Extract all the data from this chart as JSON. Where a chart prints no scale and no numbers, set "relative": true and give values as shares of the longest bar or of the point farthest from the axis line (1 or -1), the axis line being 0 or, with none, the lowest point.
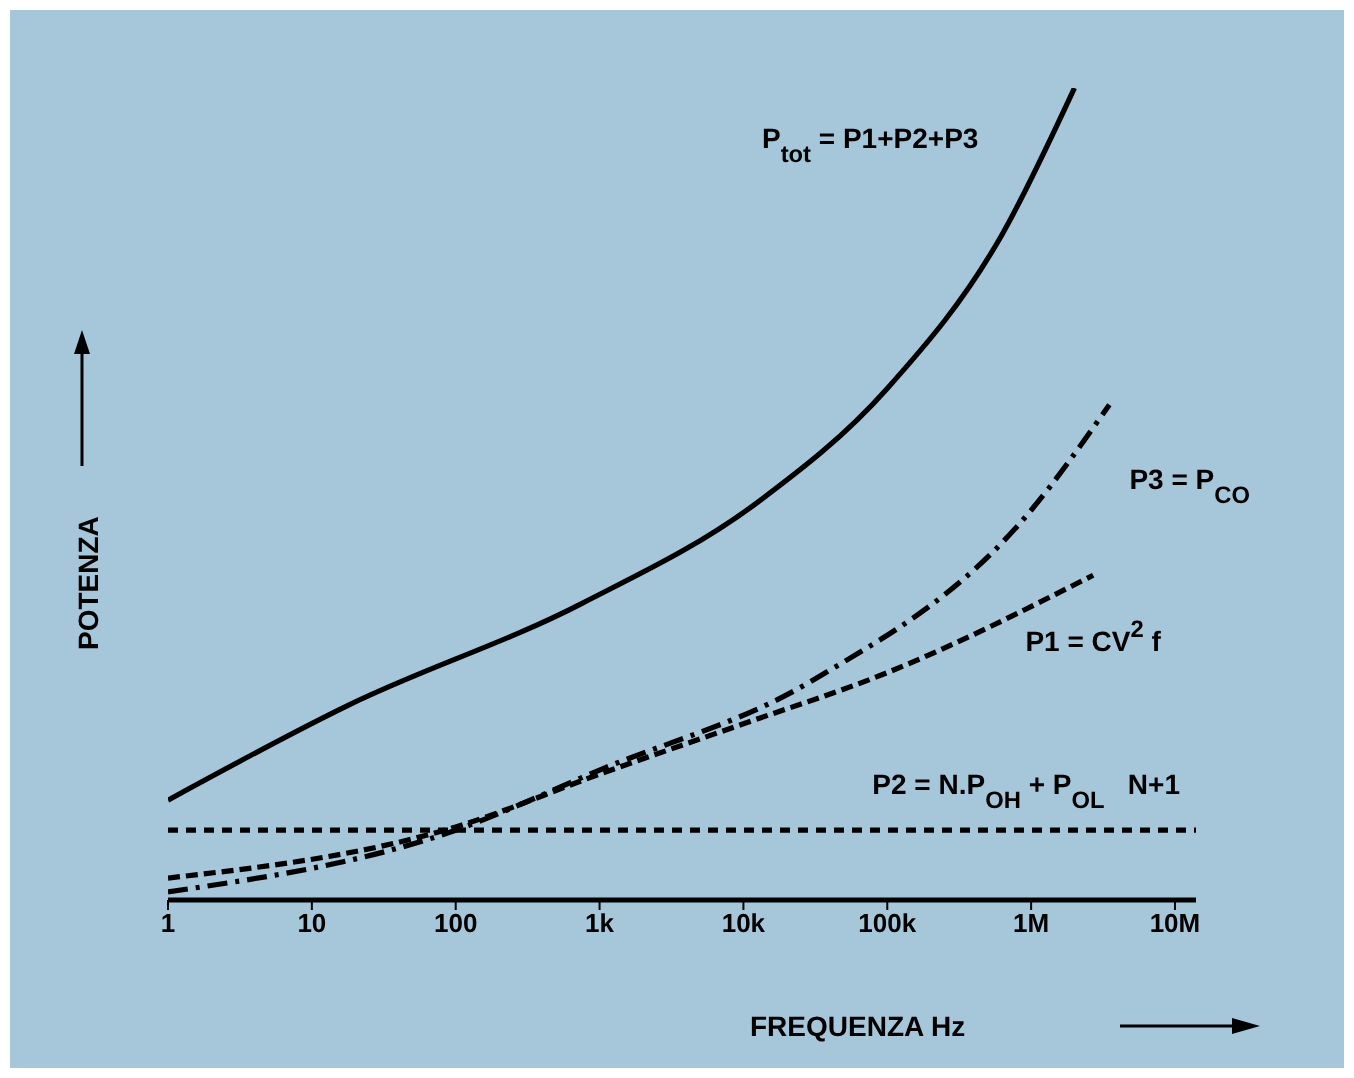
{
  "chart_data": {
    "type": "line",
    "relative": true,
    "xlabel": "FREQUENZA Hz",
    "ylabel": "POTENZA",
    "log": "x",
    "xlim": [
      1,
      14000000
    ],
    "xticks": [
      1,
      10,
      100,
      {
        "value": 1000,
        "label": "1k"
      },
      {
        "value": 10000,
        "label": "10k"
      },
      {
        "value": 100000,
        "label": "100k"
      },
      {
        "value": 1000000,
        "label": "1M"
      },
      {
        "value": 10000000,
        "label": "10M"
      }
    ],
    "marker": "none",
    "series": [
      {
        "name": "P$_{tot}$ = P1+P2+P3",
        "color": "#000000",
        "line_style": "solid",
        "x": [
          1,
          18,
          750,
          12600,
          100000,
          630000,
          2000000
        ],
        "values": [
          0.123,
          0.24,
          0.365,
          0.49,
          0.63,
          0.82,
          1
        ]
      },
      {
        "name": "P3 = P$_{CO}$",
        "color": "#000000",
        "line_style": "dashdot",
        "x": [
          1,
          100,
          1000,
          30000,
          1000000,
          3500000
        ],
        "values": [
          0.01,
          0.086,
          0.16,
          0.27,
          0.48,
          0.61
        ]
      },
      {
        "name": "P1 = CV$^{2}$ f",
        "color": "#000000",
        "line_style": "dashed",
        "x": [
          1,
          100,
          1000,
          10000,
          100000,
          2700000
        ],
        "values": [
          0.027,
          0.09,
          0.155,
          0.217,
          0.28,
          0.4
        ]
      },
      {
        "name": "P2 = N.P$_{OH}$ + P$_{OL}$   N+1",
        "color": "#000000",
        "line_style": "dotted",
        "x": [
          1,
          14000000
        ],
        "values": [
          0.086,
          0.086
        ]
      }
    ]
  }
}
